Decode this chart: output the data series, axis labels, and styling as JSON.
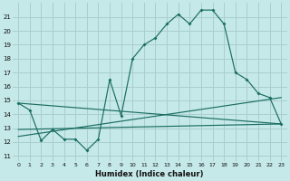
{
  "xlabel": "Humidex (Indice chaleur)",
  "bg_color": "#c5e8e8",
  "grid_color": "#aacece",
  "line_color": "#1a6e62",
  "xlim": [
    -0.5,
    23.5
  ],
  "ylim": [
    10.6,
    22.0
  ],
  "yticks": [
    11,
    12,
    13,
    14,
    15,
    16,
    17,
    18,
    19,
    20,
    21
  ],
  "xticks": [
    0,
    1,
    2,
    3,
    4,
    5,
    6,
    7,
    8,
    9,
    10,
    11,
    12,
    13,
    14,
    15,
    16,
    17,
    18,
    19,
    20,
    21,
    22,
    23
  ],
  "main_x": [
    0,
    1,
    2,
    3,
    4,
    5,
    6,
    7,
    8,
    9,
    10,
    11,
    12,
    13,
    14,
    15,
    16,
    17,
    18,
    19,
    20,
    21,
    22,
    23
  ],
  "main_y": [
    14.8,
    14.3,
    12.1,
    12.9,
    12.2,
    12.2,
    11.4,
    12.2,
    16.5,
    13.9,
    18.0,
    19.0,
    19.5,
    20.5,
    21.2,
    20.5,
    21.5,
    21.5,
    20.5,
    17.0,
    16.5,
    15.5,
    15.2,
    13.3
  ],
  "trendline1_x": [
    0,
    23
  ],
  "trendline1_y": [
    14.8,
    13.3
  ],
  "trendline2_x": [
    0,
    23
  ],
  "trendline2_y": [
    12.4,
    15.2
  ],
  "trendline3_x": [
    0,
    23
  ],
  "trendline3_y": [
    12.9,
    13.3
  ]
}
